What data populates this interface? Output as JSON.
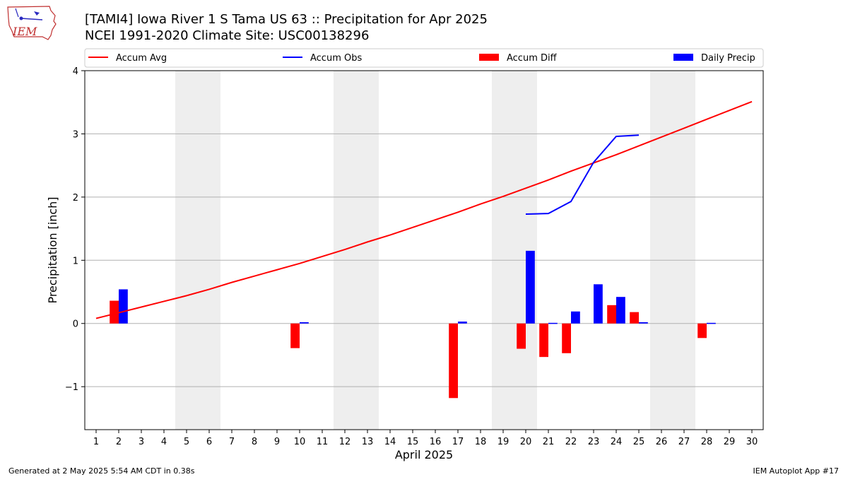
{
  "header": {
    "title_line1": "[TAMI4] Iowa River 1 S Tama US 63 :: Precipitation for Apr 2025",
    "title_line2": "NCEI 1991-2020 Climate Site: USC00138296",
    "logo_text": "IEM"
  },
  "footer": {
    "left": "Generated at 2 May 2025 5:54 AM CDT in 0.38s",
    "right": "IEM Autoplot App #17"
  },
  "colors": {
    "accum_avg": "#ff0000",
    "accum_obs": "#0000ff",
    "accum_diff": "#ff0000",
    "daily_precip": "#0000ff",
    "weekend_band": "#eeeeee",
    "grid": "#b0b0b0"
  },
  "chart_data": {
    "type": "bar",
    "xlabel": "April 2025",
    "ylabel": "Precipitation [inch]",
    "ylim": [
      -1.68,
      4.0
    ],
    "xlim": [
      0.5,
      30.5
    ],
    "yticks": [
      -1,
      0,
      1,
      2,
      3,
      4
    ],
    "ytick_labels": [
      "−1",
      "0",
      "1",
      "2",
      "3",
      "4"
    ],
    "days": [
      1,
      2,
      3,
      4,
      5,
      6,
      7,
      8,
      9,
      10,
      11,
      12,
      13,
      14,
      15,
      16,
      17,
      18,
      19,
      20,
      21,
      22,
      23,
      24,
      25,
      26,
      27,
      28,
      29,
      30
    ],
    "grid": "horizontal",
    "weekend_bands": [
      [
        4.5,
        6.5
      ],
      [
        11.5,
        13.5
      ],
      [
        18.5,
        20.5
      ],
      [
        25.5,
        27.5
      ]
    ],
    "legend": {
      "placement": "top",
      "entries": [
        {
          "label": "Accum Avg",
          "kind": "line",
          "color": "#ff0000"
        },
        {
          "label": "Accum Obs",
          "kind": "line",
          "color": "#0000ff"
        },
        {
          "label": "Accum Diff",
          "kind": "bar",
          "color": "#ff0000"
        },
        {
          "label": "Daily Precip",
          "kind": "bar",
          "color": "#0000ff"
        }
      ]
    },
    "series": [
      {
        "name": "Accum Avg",
        "type": "line",
        "x": [
          1,
          2,
          3,
          4,
          5,
          6,
          7,
          8,
          9,
          10,
          11,
          12,
          13,
          14,
          15,
          16,
          17,
          18,
          19,
          20,
          21,
          22,
          23,
          24,
          25,
          26,
          27,
          28,
          29,
          30
        ],
        "values": [
          0.08,
          0.17,
          0.26,
          0.35,
          0.44,
          0.54,
          0.65,
          0.75,
          0.85,
          0.95,
          1.06,
          1.17,
          1.29,
          1.4,
          1.52,
          1.64,
          1.76,
          1.89,
          2.01,
          2.14,
          2.27,
          2.41,
          2.54,
          2.67,
          2.81,
          2.95,
          3.09,
          3.23,
          3.37,
          3.51
        ]
      },
      {
        "name": "Accum Obs",
        "type": "line",
        "x": [
          20,
          21,
          22,
          23,
          24,
          25
        ],
        "values": [
          1.73,
          1.74,
          1.93,
          2.55,
          2.96,
          2.98
        ]
      },
      {
        "name": "Accum Diff",
        "type": "bar",
        "x": [
          2,
          10,
          17,
          20,
          21,
          22,
          24,
          25,
          28
        ],
        "values": [
          0.36,
          -0.39,
          -1.18,
          -0.4,
          -0.53,
          -0.47,
          0.29,
          0.18,
          -0.23
        ]
      },
      {
        "name": "Daily Precip",
        "type": "bar",
        "x": [
          2,
          10,
          17,
          20,
          21,
          22,
          23,
          24,
          25,
          28
        ],
        "values": [
          0.54,
          0.02,
          0.03,
          1.15,
          0.01,
          0.19,
          0.62,
          0.42,
          0.02,
          0.01
        ]
      }
    ]
  }
}
